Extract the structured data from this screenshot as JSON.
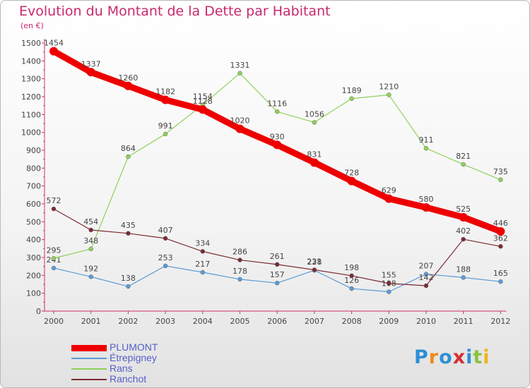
{
  "title": "Evolution du Montant de la Dette par Habitant",
  "unit": "(en €)",
  "logo": {
    "text": "Proxiti",
    "letter_colors": [
      "#2e8fd4",
      "#f08a1c",
      "#2e8fd4",
      "#d42e2e",
      "#2e8fd4",
      "#8ac43c",
      "#f0b41c"
    ]
  },
  "chart_data": {
    "type": "line",
    "title": "Evolution du Montant de la Dette par Habitant",
    "ylabel": "(en €)",
    "xlabel": "",
    "ylim": [
      0,
      1500
    ],
    "yticks": [
      0,
      100,
      200,
      300,
      400,
      500,
      600,
      700,
      800,
      900,
      1000,
      1100,
      1200,
      1300,
      1400,
      1500
    ],
    "grid": false,
    "legend_position": "bottom-left",
    "x": [
      "2000",
      "2001",
      "2002",
      "2003",
      "2004",
      "2005",
      "2006",
      "2007",
      "2008",
      "2009",
      "2010",
      "2011",
      "2012"
    ],
    "series": [
      {
        "name": "PLUMONT",
        "color": "#ee0000",
        "values": [
          1454,
          1337,
          1260,
          1182,
          1128,
          1020,
          930,
          831,
          728,
          629,
          580,
          525,
          446
        ]
      },
      {
        "name": "Étrepigney",
        "color": "#5b9bd5",
        "values": [
          241,
          192,
          138,
          253,
          217,
          178,
          157,
          228,
          126,
          108,
          207,
          188,
          165
        ]
      },
      {
        "name": "Rans",
        "color": "#8fd15a",
        "values": [
          295,
          348,
          864,
          991,
          1154,
          1331,
          1116,
          1056,
          1189,
          1210,
          911,
          821,
          735
        ]
      },
      {
        "name": "Ranchot",
        "color": "#7a2a32",
        "values": [
          572,
          454,
          435,
          407,
          334,
          286,
          261,
          231,
          198,
          155,
          142,
          402,
          362
        ]
      }
    ]
  }
}
